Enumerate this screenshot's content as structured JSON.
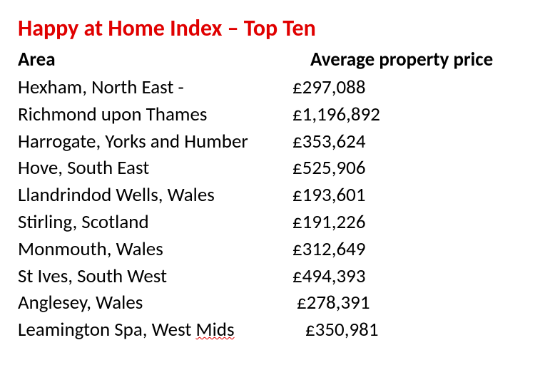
{
  "title": "Happy at Home Index – Top Ten",
  "headers": {
    "area": "Area",
    "price": "Average property price"
  },
  "rows": [
    {
      "area": "Hexham, North East -",
      "price": "£297,088",
      "area_offset": 0,
      "price_offset": 0
    },
    {
      "area": "Richmond upon Thames",
      "price": "£1,196,892",
      "area_offset": 0,
      "price_offset": 0
    },
    {
      "area": "Harrogate, Yorks and Humber",
      "price": "£353,624",
      "area_offset": 0,
      "price_offset": 0
    },
    {
      "area": "Hove, South East",
      "price": "£525,906",
      "area_offset": 0,
      "price_offset": 0
    },
    {
      "area": "Llandrindod Wells, Wales",
      "price": "£193,601",
      "area_offset": 0,
      "price_offset": 0
    },
    {
      "area": "Stirling, Scotland",
      "price": "£191,226",
      "area_offset": 0,
      "price_offset": 0
    },
    {
      "area": "Monmouth, Wales",
      "price": "£312,649",
      "area_offset": 0,
      "price_offset": 0
    },
    {
      "area": "St Ives, South West",
      "price": "£494,393",
      "area_offset": 0,
      "price_offset": 0
    },
    {
      "area": "Anglesey, Wales",
      "price": "£278,391",
      "area_offset": 0,
      "price_offset": 6
    },
    {
      "area_prefix": "Leamington Spa, West ",
      "area_suffix": "Mids",
      "price": "£350,981",
      "area_offset": 0,
      "price_offset": 18,
      "spellcheck_suffix": true
    }
  ],
  "style": {
    "title_color": "#e00000",
    "text_color": "#000000",
    "background_color": "#ffffff",
    "title_fontsize": 32,
    "body_fontsize": 27,
    "area_col_width": 385,
    "header_area_col_width": 410
  }
}
